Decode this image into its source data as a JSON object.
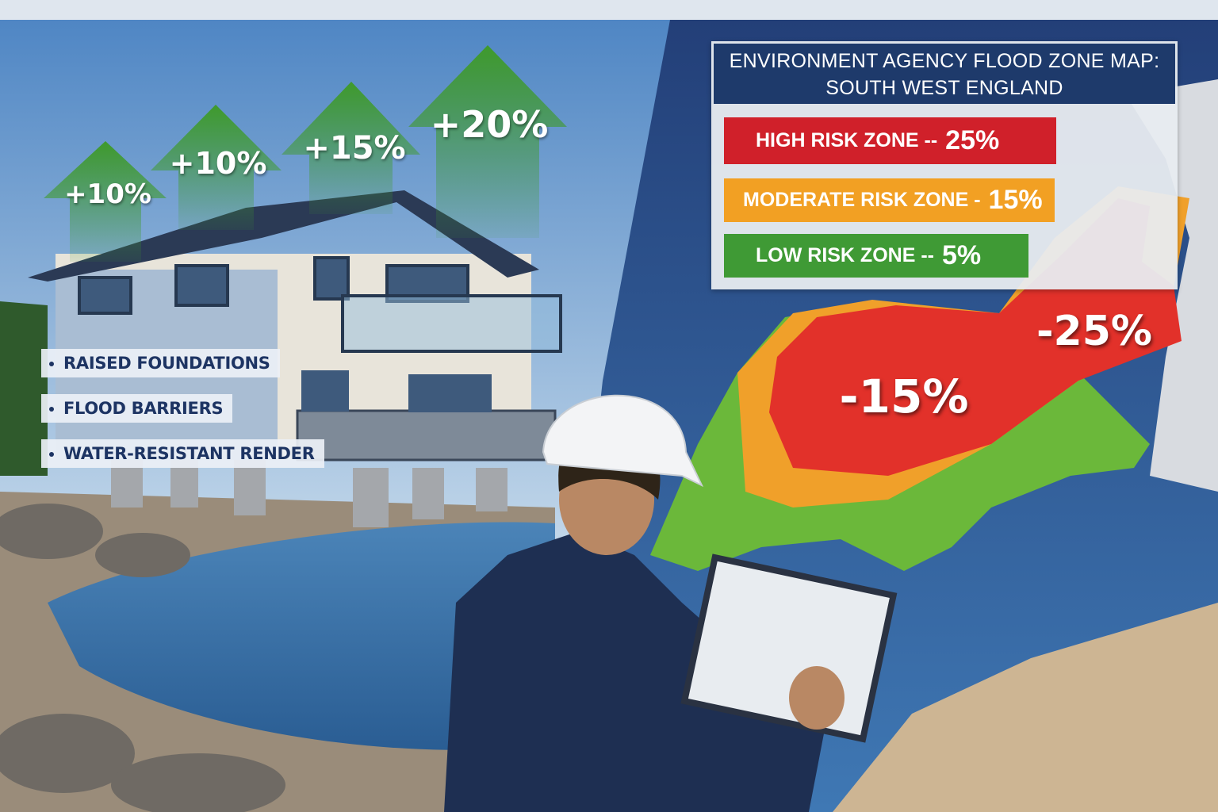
{
  "value_arrows": [
    {
      "label": "+10%",
      "value": 10,
      "color": "#3d9a2e"
    },
    {
      "label": "+10%",
      "value": 10,
      "color": "#3d9a2e"
    },
    {
      "label": "+15%",
      "value": 15,
      "color": "#3d9a2e"
    },
    {
      "label": "+20%",
      "value": 20,
      "color": "#3d9a2e"
    }
  ],
  "features": [
    "RAISED FOUNDATIONS",
    "FLOOD BARRIERS",
    "WATER-RESISTANT RENDER"
  ],
  "legend": {
    "title_line1": "ENVIRONMENT AGENCY FLOOD ZONE MAP:",
    "title_line2": "SOUTH WEST ENGLAND",
    "zones": [
      {
        "label": "HIGH RISK ZONE --",
        "value": "25%",
        "color": "#d0202a"
      },
      {
        "label": "MODERATE RISK ZONE -",
        "value": "15%",
        "color": "#f2a023"
      },
      {
        "label": "LOW RISK ZONE --",
        "value": "5%",
        "color": "#3f9a35"
      }
    ]
  },
  "map_labels": [
    "-15%",
    "-25%"
  ],
  "colors": {
    "title_bg": "#1e3a6b",
    "sea": "#2c5a94",
    "sky": "#6f9fd0"
  }
}
